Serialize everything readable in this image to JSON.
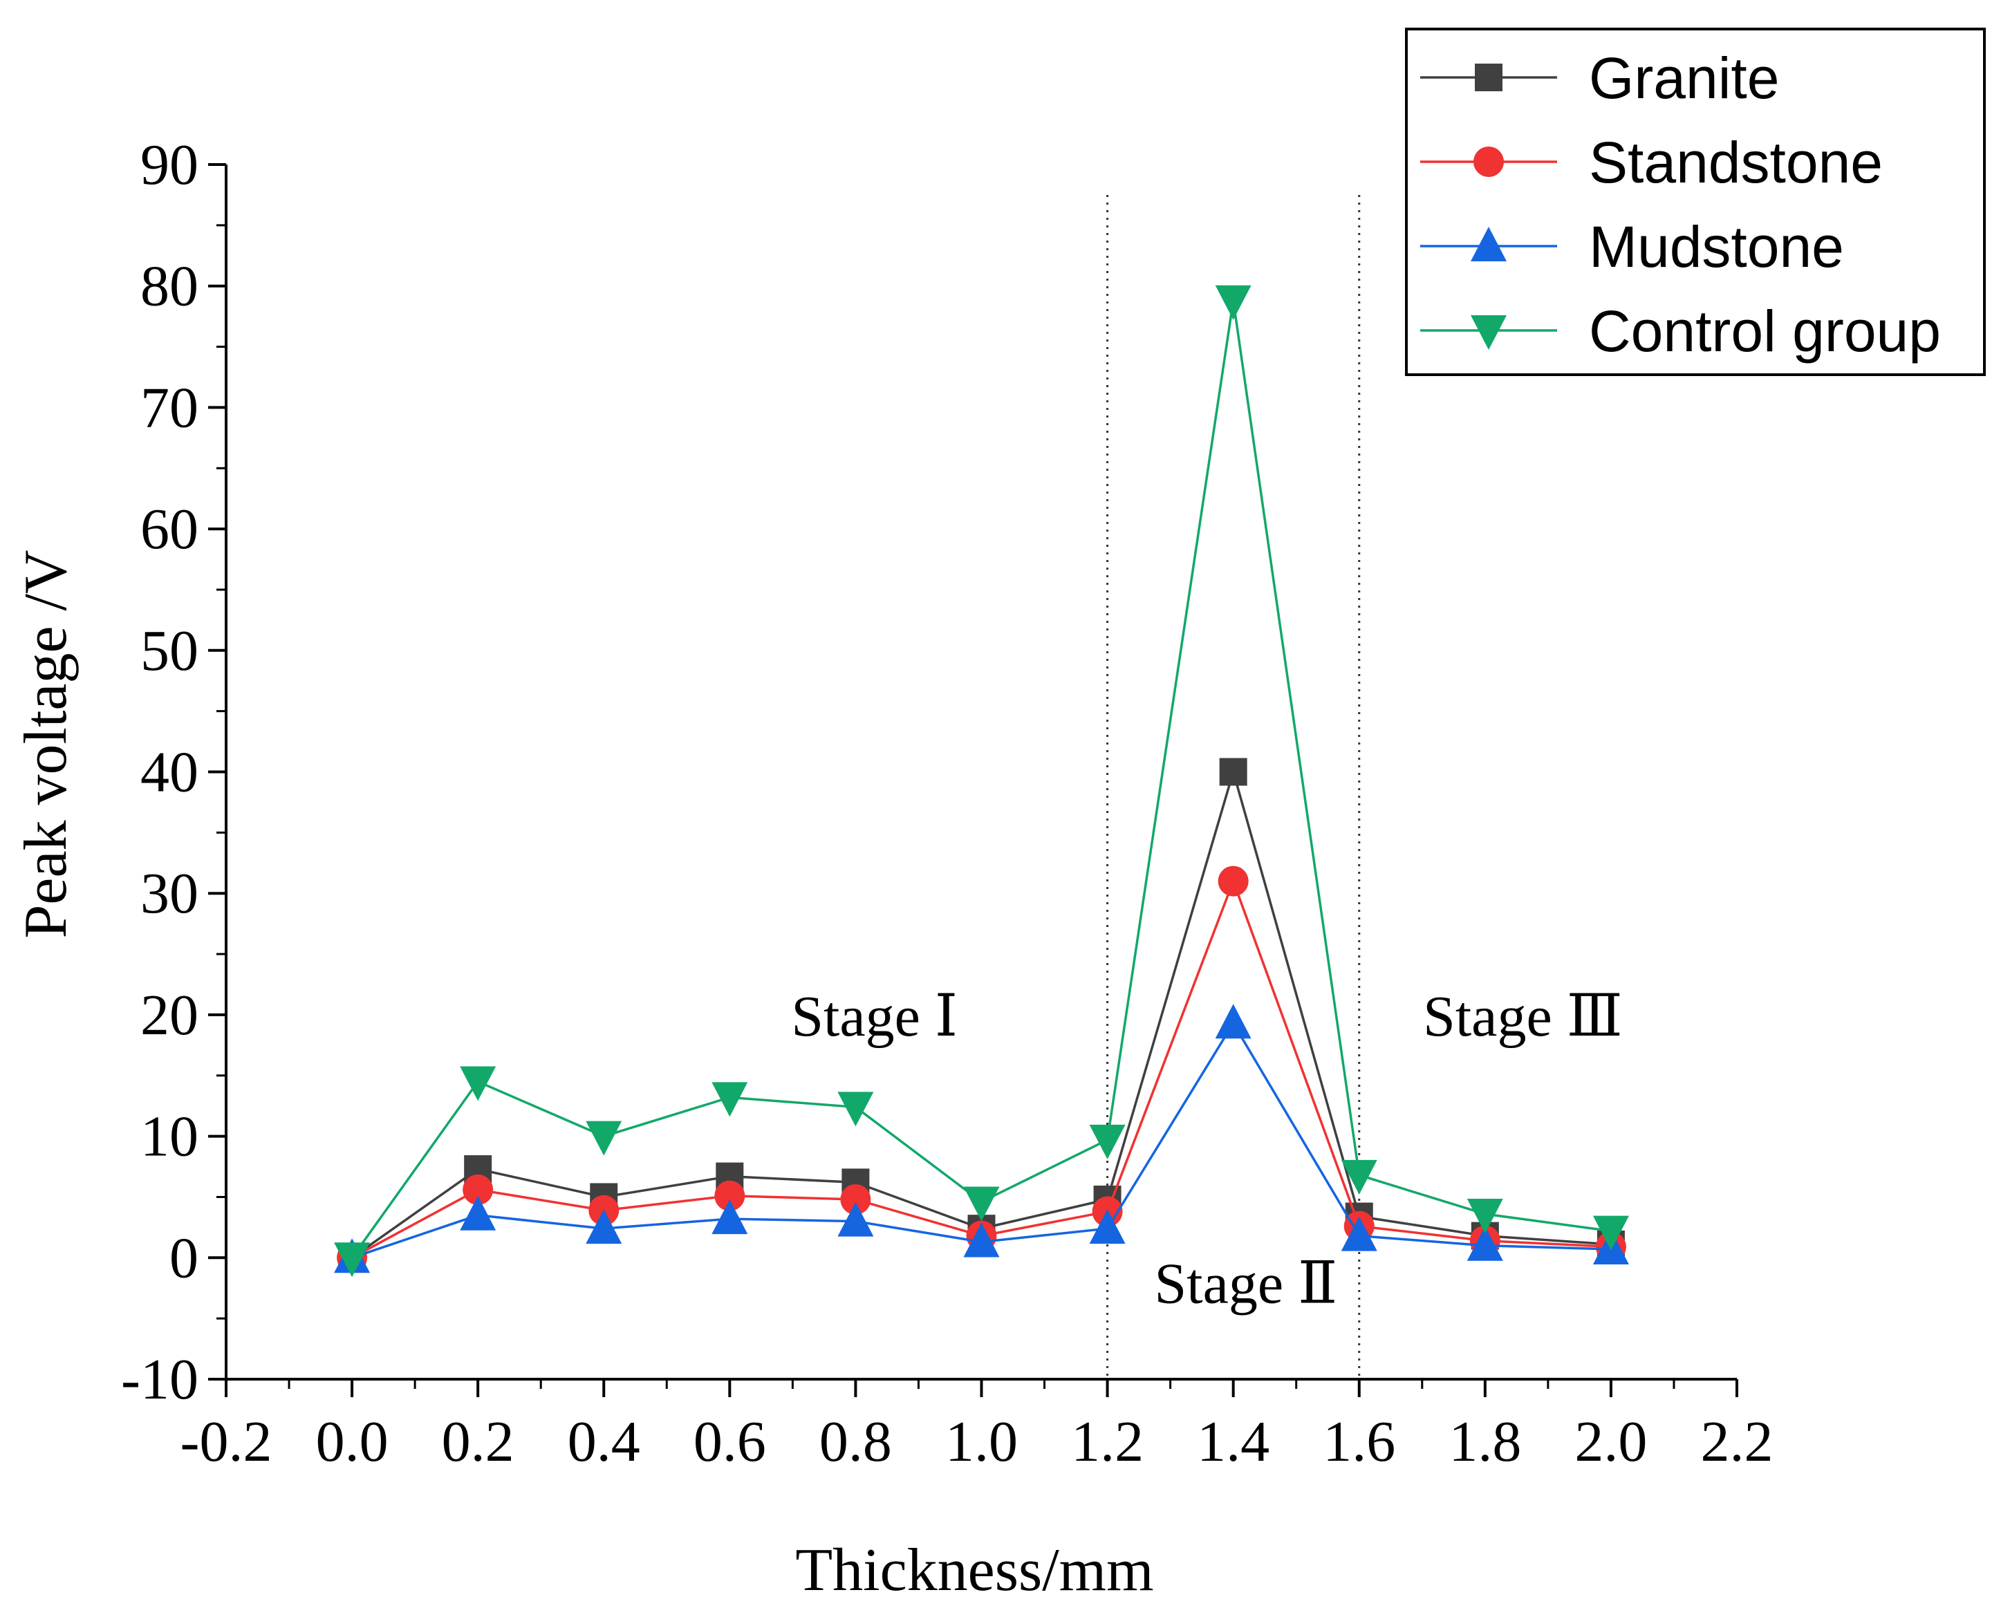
{
  "chart_data": {
    "type": "line",
    "title": "",
    "xlabel": "Thickness/mm",
    "ylabel": "Peak voltage /V",
    "xlim": [
      -0.2,
      2.2
    ],
    "ylim": [
      -10,
      90
    ],
    "x_ticks": [
      "-0.2",
      "0.0",
      "0.2",
      "0.4",
      "0.6",
      "0.8",
      "1.0",
      "1.2",
      "1.4",
      "1.6",
      "1.8",
      "2.0",
      "2.2"
    ],
    "y_ticks": [
      "-10",
      "0",
      "10",
      "20",
      "30",
      "40",
      "50",
      "60",
      "70",
      "80",
      "90"
    ],
    "x": [
      0.0,
      0.2,
      0.4,
      0.6,
      0.8,
      1.0,
      1.2,
      1.4,
      1.6,
      1.8,
      2.0
    ],
    "series": [
      {
        "name": "Granite",
        "color": "#404040",
        "marker": "square",
        "values": [
          0,
          7.3,
          5.0,
          6.7,
          6.2,
          2.4,
          4.8,
          40.0,
          3.4,
          1.8,
          1.1
        ]
      },
      {
        "name": "Standstone",
        "color": "#f03232",
        "marker": "circle",
        "values": [
          0,
          5.6,
          3.9,
          5.1,
          4.8,
          1.8,
          3.8,
          31.0,
          2.6,
          1.4,
          0.9
        ]
      },
      {
        "name": "Mudstone",
        "color": "#1565e0",
        "marker": "triangle-up",
        "values": [
          0,
          3.5,
          2.4,
          3.2,
          3.0,
          1.3,
          2.4,
          19.3,
          1.8,
          1.0,
          0.7
        ]
      },
      {
        "name": "Control group",
        "color": "#12a86a",
        "marker": "triangle-down",
        "values": [
          0,
          14.5,
          10.0,
          13.2,
          12.4,
          4.6,
          9.7,
          78.8,
          6.8,
          3.6,
          2.2
        ]
      }
    ],
    "vertical_lines": [
      1.2,
      1.6
    ],
    "annotations": [
      {
        "text": "Stage Ⅰ",
        "x": 0.83,
        "y": 20
      },
      {
        "text": "Stage Ⅱ",
        "x": 1.42,
        "y": -2
      },
      {
        "text": "Stage  Ⅲ",
        "x": 1.86,
        "y": 20
      }
    ],
    "legend_position": "top-right"
  }
}
